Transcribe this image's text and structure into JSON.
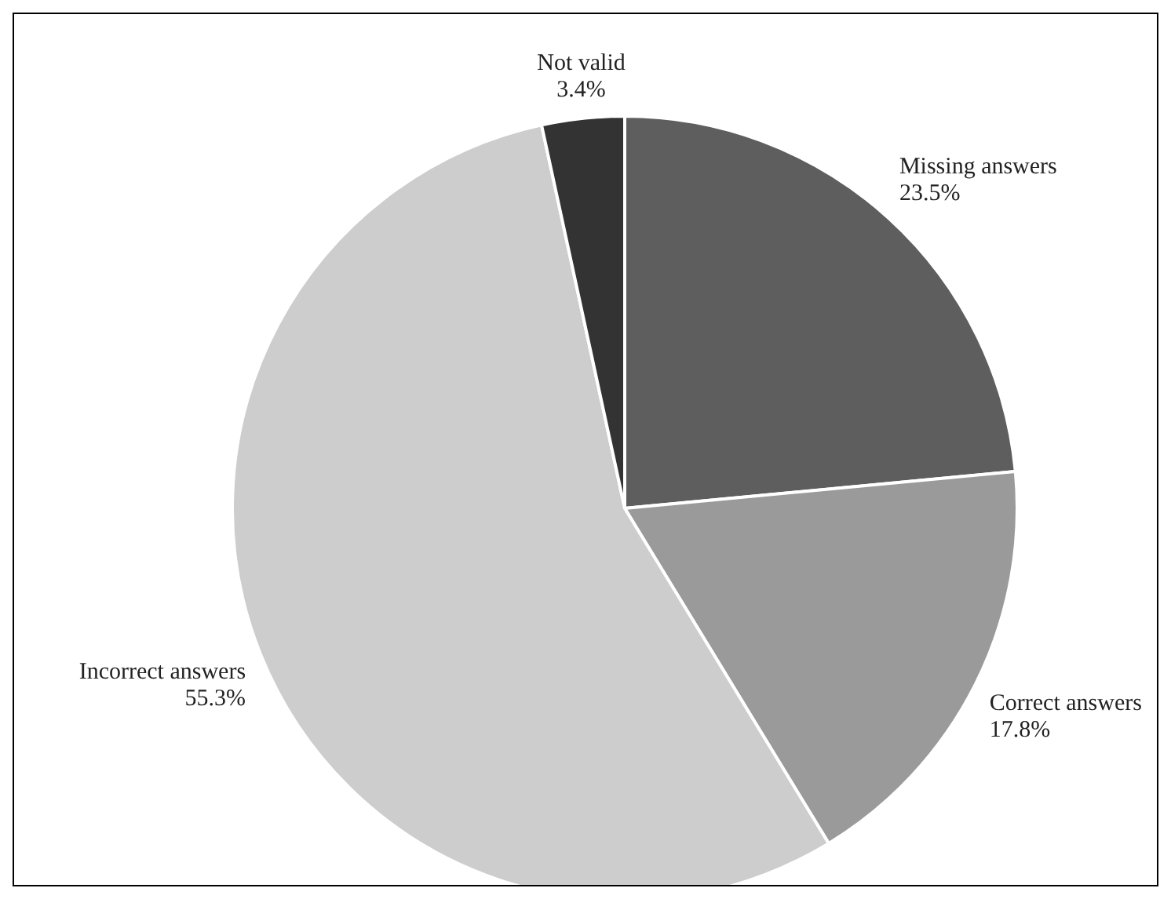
{
  "chart_data": {
    "type": "pie",
    "categories": [
      "Missing answers",
      "Correct answers",
      "Incorrect answers",
      "Not valid"
    ],
    "values": [
      23.5,
      17.8,
      55.3,
      3.4
    ],
    "colors": [
      "#5e5e5e",
      "#9a9a9a",
      "#cdcdcd",
      "#333333"
    ],
    "value_labels": [
      "23.5%",
      "17.8%",
      "55.3%",
      "3.4%"
    ]
  }
}
